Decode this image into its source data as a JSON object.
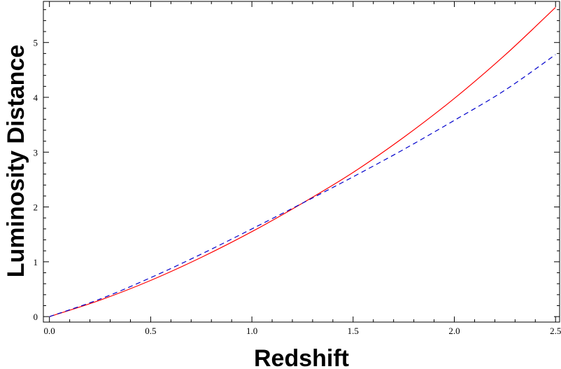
{
  "chart_data": {
    "type": "line",
    "xlabel": "Redshift",
    "ylabel": "Luminosity  Distance",
    "xlim": [
      -0.03,
      2.52
    ],
    "ylim": [
      -0.1,
      5.75
    ],
    "xticks": [
      "0.0",
      "0.5",
      "1.0",
      "1.5",
      "2.0",
      "2.5"
    ],
    "yticks": [
      "0",
      "1",
      "2",
      "3",
      "4",
      "5"
    ],
    "grid": false,
    "series": [
      {
        "style": "solid",
        "color": "#ff0000",
        "x": [
          0.0,
          0.25,
          0.5,
          0.75,
          1.0,
          1.25,
          1.5,
          1.75,
          2.0,
          2.25,
          2.5
        ],
        "y": [
          0.0,
          0.3,
          0.66,
          1.08,
          1.55,
          2.07,
          2.63,
          3.27,
          3.98,
          4.77,
          5.64
        ]
      },
      {
        "style": "dashed",
        "color": "#0000cc",
        "x": [
          0.0,
          0.25,
          0.5,
          0.75,
          1.0,
          1.25,
          1.5,
          1.75,
          2.0,
          2.25,
          2.5
        ],
        "y": [
          0.0,
          0.32,
          0.71,
          1.14,
          1.6,
          2.07,
          2.55,
          3.05,
          3.58,
          4.13,
          4.78
        ]
      }
    ]
  }
}
